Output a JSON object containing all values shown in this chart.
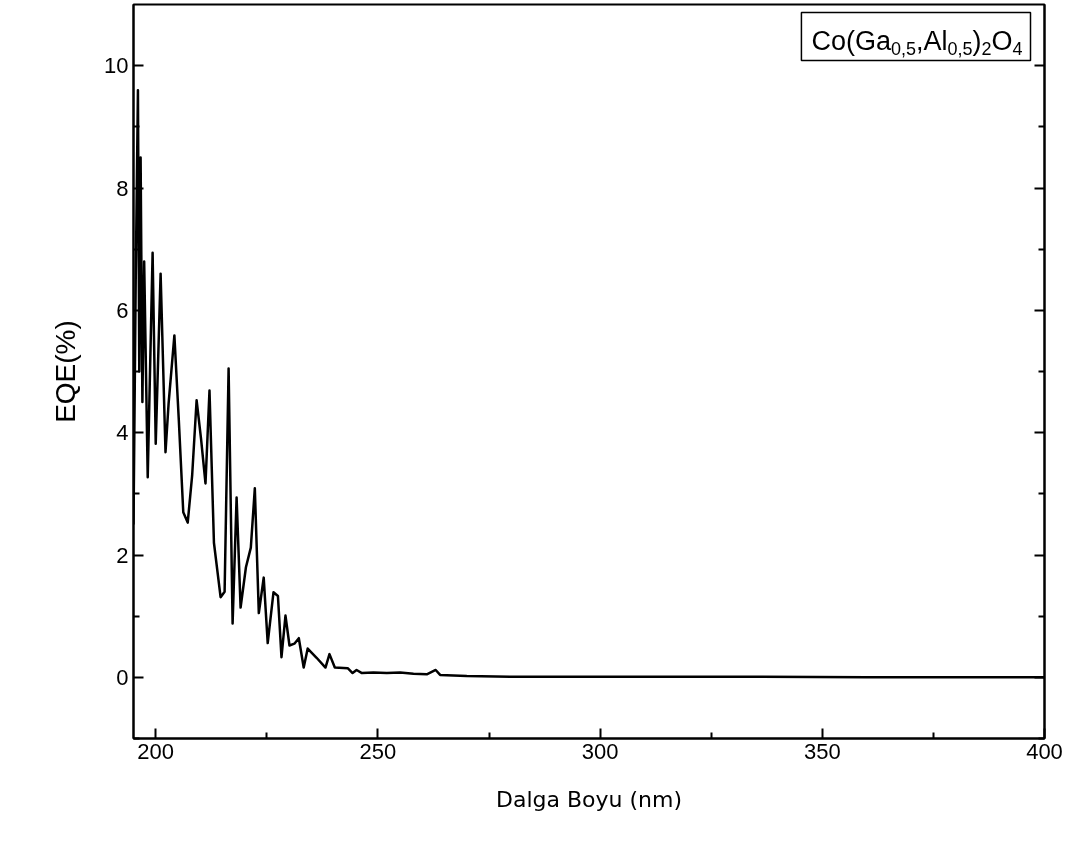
{
  "chart_data": {
    "type": "line",
    "xlabel": "Dalga Boyu (nm)",
    "ylabel": "EQE(%)",
    "annotations": [
      "Co(Ga$_{0,5}$,Al$_{0,5}$)$_{2}$O$_{4}$"
    ],
    "xlim": [
      195,
      400
    ],
    "ylim": [
      -1,
      11
    ],
    "xticks": [
      200,
      {
        "value": 225,
        "label": null
      },
      250,
      {
        "value": 275,
        "label": null
      },
      300,
      {
        "value": 325,
        "label": null
      },
      350,
      {
        "value": 375,
        "label": null
      },
      400
    ],
    "yticks": [
      {
        "value": -1,
        "label": null
      },
      0,
      {
        "value": 1,
        "label": null
      },
      2,
      {
        "value": 3,
        "label": null
      },
      4,
      {
        "value": 5,
        "label": null
      },
      6,
      {
        "value": 7,
        "label": null
      },
      8,
      {
        "value": 9,
        "label": null
      },
      10
    ],
    "grid": false,
    "marker": "none",
    "line_style": "solid",
    "series": [
      {
        "color": "#000000",
        "x": [
          195,
          195.5,
          196,
          196.3,
          196.6,
          197,
          197.4,
          198.2,
          199.3,
          200,
          201.1,
          202.2,
          202.9,
          204.2,
          205.2,
          206.2,
          207.2,
          208.2,
          209.2,
          210.2,
          211.2,
          212.1,
          213.1,
          214.6,
          215.5,
          216.4,
          217.3,
          218.2,
          219.1,
          220.3,
          221.4,
          222.3,
          223.2,
          224.3,
          225.2,
          226.5,
          227.5,
          228.3,
          229.2,
          230.1,
          231.2,
          232.2,
          233.3,
          234.2,
          236.2,
          238.2,
          239.1,
          240.3,
          243.2,
          244.3,
          245.2,
          246.4,
          249,
          252,
          255,
          258,
          261,
          263,
          264,
          267,
          270,
          280,
          300,
          330,
          360,
          400
        ],
        "values": [
          2.5,
          6.5,
          9.6,
          5,
          8.5,
          4.5,
          6.8,
          3.27,
          6.94,
          3.82,
          6.6,
          3.68,
          4.48,
          5.59,
          4.2,
          2.7,
          2.53,
          3.3,
          4.53,
          3.9,
          3.17,
          4.69,
          2.2,
          1.31,
          1.4,
          5.05,
          0.88,
          2.94,
          1.14,
          1.8,
          2.12,
          3.09,
          1.05,
          1.63,
          0.56,
          1.39,
          1.33,
          0.33,
          1.01,
          0.52,
          0.55,
          0.64,
          0.16,
          0.47,
          0.32,
          0.16,
          0.38,
          0.16,
          0.15,
          0.07,
          0.12,
          0.07,
          0.08,
          0.07,
          0.08,
          0.06,
          0.05,
          0.12,
          0.04,
          0.03,
          0.02,
          0.01,
          0.01,
          0.01,
          0.0,
          0.0
        ]
      }
    ]
  }
}
